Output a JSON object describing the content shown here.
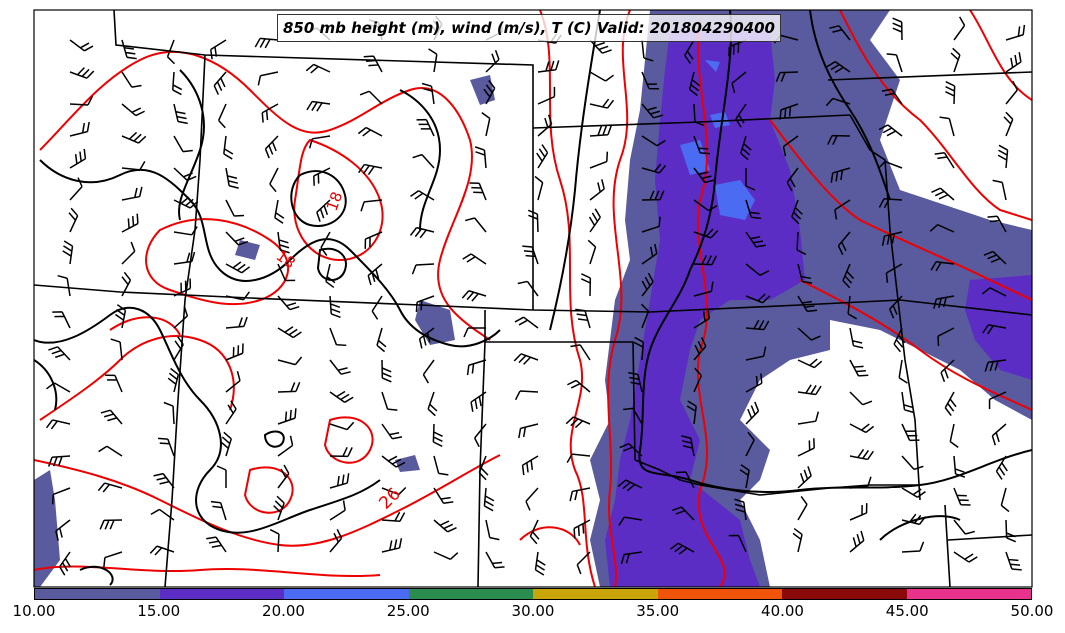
{
  "title": "850 mb height (m), wind (m/s), T (C) Valid: 201804290400",
  "contour_labels": [
    "18",
    "18",
    "26"
  ],
  "colorbar": {
    "ticks": [
      "10.00",
      "15.00",
      "20.00",
      "25.00",
      "30.00",
      "35.00",
      "40.00",
      "45.00",
      "50.00"
    ],
    "colors": [
      "#5a5a9e",
      "#5b2dc5",
      "#4b6cf2",
      "#2a8c4e",
      "#c9a50a",
      "#f0530a",
      "#8a0a0a",
      "#e8328c"
    ]
  },
  "layer_colors": {
    "wind_10_15": "#5a5a9e",
    "wind_15_20": "#5b2dc5",
    "wind_20_25": "#4b6cf2",
    "temperature_contour": "#ee0000",
    "height_contour": "#000000"
  }
}
